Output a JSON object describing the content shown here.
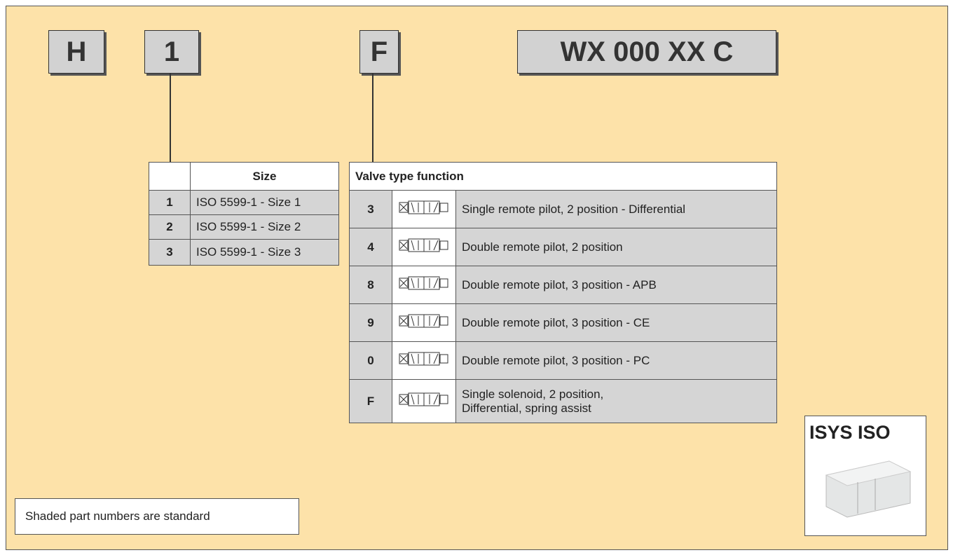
{
  "codes": [
    "H",
    "1",
    "F",
    "WX 000 XX C"
  ],
  "size_table": {
    "header": "Size",
    "rows": [
      [
        "1",
        "ISO 5599-1 - Size 1"
      ],
      [
        "2",
        "ISO 5599-1 - Size 2"
      ],
      [
        "3",
        "ISO 5599-1 - Size 3"
      ]
    ]
  },
  "valve_table": {
    "title": "Valve type function",
    "rows": [
      {
        "code": "3",
        "description": [
          "Single remote pilot, 2 position - Differential"
        ]
      },
      {
        "code": "4",
        "description": [
          "Double remote pilot, 2 position"
        ]
      },
      {
        "code": "8",
        "description": [
          "Double remote pilot, 3 position - APB"
        ]
      },
      {
        "code": "9",
        "description": [
          "Double remote pilot, 3 position - CE"
        ]
      },
      {
        "code": "0",
        "description": [
          "Double remote pilot, 3 position - PC"
        ]
      },
      {
        "code": "F",
        "description": [
          "Single solenoid, 2 position,",
          "Differential, spring assist"
        ]
      }
    ]
  },
  "note": "Shaded part numbers are standard",
  "product": {
    "label": "ISYS ISO"
  }
}
